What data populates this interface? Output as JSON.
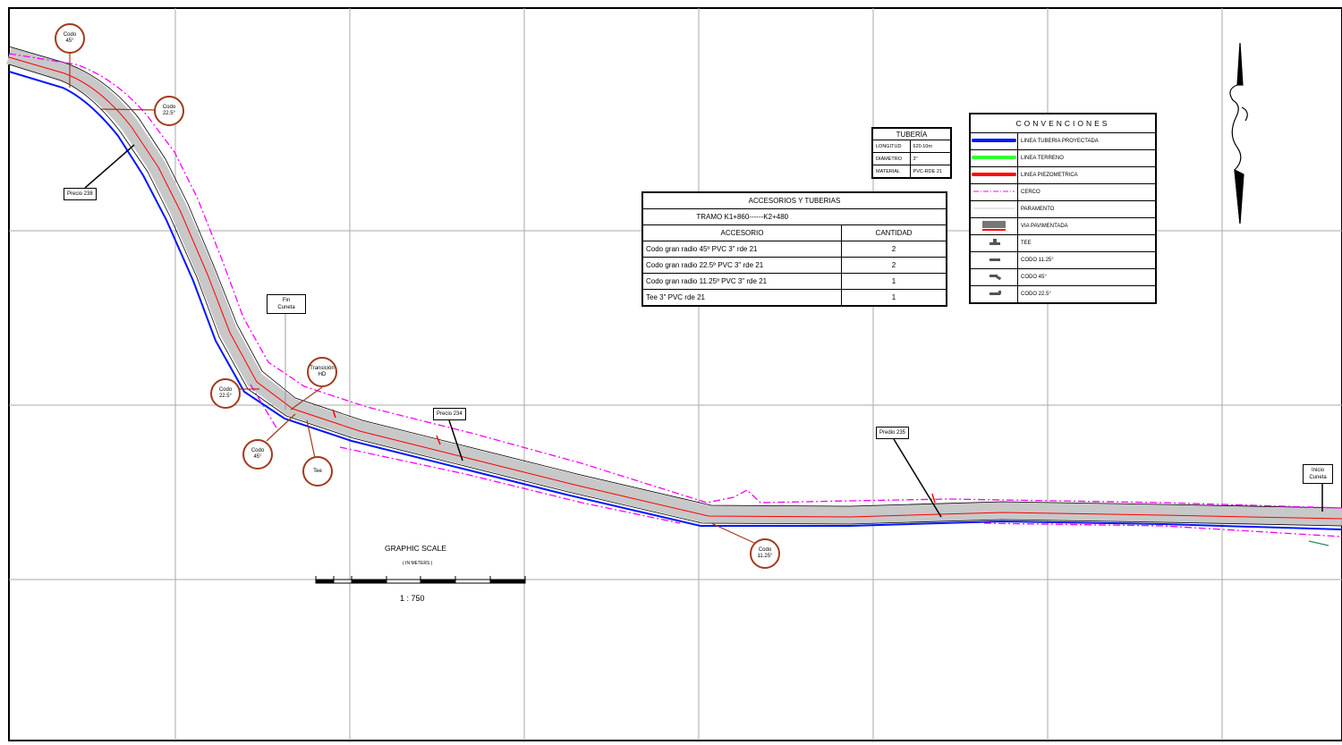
{
  "accessories_table": {
    "title": "ACCESORIOS Y TUBERIAS",
    "section": "TRAMO K1+860------K2+480",
    "col_accessory": "ACCESORIO",
    "col_quantity": "CANTIDAD",
    "rows": [
      {
        "accessory": "Codo gran radio 45º PVC 3\" rde 21",
        "quantity": "2"
      },
      {
        "accessory": "Codo gran radio 22.5º PVC 3\" rde 21",
        "quantity": "2"
      },
      {
        "accessory": "Codo gran radio 11.25º PVC 3\" rde 21",
        "quantity": "1"
      },
      {
        "accessory": "Tee 3\" PVC rde 21",
        "quantity": "1"
      }
    ]
  },
  "pipe_table": {
    "title": "TUBERÍA",
    "rows": [
      {
        "label": "LONGITUD",
        "value": "620.10m"
      },
      {
        "label": "DIÁMETRO",
        "value": "3\""
      },
      {
        "label": "MATERIAL",
        "value": "PVC-RDE 21"
      }
    ]
  },
  "legend": {
    "title": "CONVENCIONES",
    "items": [
      {
        "symbol": "blue-line",
        "label": "LINEA TUBERIA PROYECTADA"
      },
      {
        "symbol": "green-line",
        "label": "LINEA TERRENO"
      },
      {
        "symbol": "red-line",
        "label": "LINEA PIEZOMETRICA"
      },
      {
        "symbol": "dashdot-magenta",
        "label": "CERCO"
      },
      {
        "symbol": "thin-gray",
        "label": "PARAMENTO"
      },
      {
        "symbol": "pavement-icon",
        "label": "VIA PAVIMENTADA"
      },
      {
        "symbol": "tee-icon",
        "label": "TEE"
      },
      {
        "symbol": "elbow-icon",
        "label": "CODO 11.25°"
      },
      {
        "symbol": "elbow-icon",
        "label": "CODO 45°"
      },
      {
        "symbol": "elbow-icon",
        "label": "CODO 22.5°"
      }
    ]
  },
  "labels": {
    "predio_238": "Precio 238",
    "predio_234": "Precio 234",
    "predio_235": "Predio 235",
    "fin_cuneta": [
      "Fin",
      "Cuneta"
    ],
    "inicio_cuneta": [
      "Inicio",
      "Cuneta"
    ]
  },
  "fittings": {
    "codo45_top": [
      "Codo",
      "45°"
    ],
    "codo225_top": [
      "Codo",
      "22.5°"
    ],
    "transicion": [
      "Transición",
      "HD"
    ],
    "codo225_mid": [
      "Codo",
      "22.5°"
    ],
    "codo45_mid": [
      "Codo",
      "45°"
    ],
    "tee": [
      "Tee"
    ],
    "codo1125": [
      "Codo",
      "11.25°"
    ]
  },
  "scale": {
    "title": "GRAPHIC SCALE",
    "units": "( IN METERS )",
    "ratio": "1 : 750"
  },
  "colors": {
    "pipe": "#0015ff",
    "piezometric": "#ff0000",
    "terrain": "#00cc00",
    "fence": "#ff00ff",
    "road": "#c8c8c8",
    "callout": "#a33a1c"
  }
}
